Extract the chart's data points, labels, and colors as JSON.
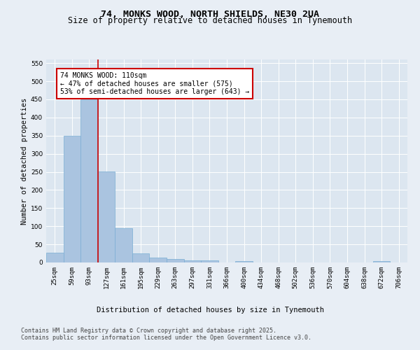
{
  "title_line1": "74, MONKS WOOD, NORTH SHIELDS, NE30 2UA",
  "title_line2": "Size of property relative to detached houses in Tynemouth",
  "xlabel": "Distribution of detached houses by size in Tynemouth",
  "ylabel": "Number of detached properties",
  "categories": [
    "25sqm",
    "59sqm",
    "93sqm",
    "127sqm",
    "161sqm",
    "195sqm",
    "229sqm",
    "263sqm",
    "297sqm",
    "331sqm",
    "366sqm",
    "400sqm",
    "434sqm",
    "468sqm",
    "502sqm",
    "536sqm",
    "570sqm",
    "604sqm",
    "638sqm",
    "672sqm",
    "706sqm"
  ],
  "values": [
    28,
    350,
    450,
    252,
    95,
    25,
    13,
    10,
    5,
    5,
    0,
    3,
    0,
    0,
    0,
    0,
    0,
    0,
    0,
    3,
    0
  ],
  "bar_color": "#aac4e0",
  "bar_edge_color": "#7aaed4",
  "vline_x_index": 2.5,
  "vline_color": "#cc0000",
  "annotation_text": "74 MONKS WOOD: 110sqm\n← 47% of detached houses are smaller (575)\n53% of semi-detached houses are larger (643) →",
  "annotation_box_color": "#ffffff",
  "annotation_box_edge_color": "#cc0000",
  "ylim": [
    0,
    560
  ],
  "yticks": [
    0,
    50,
    100,
    150,
    200,
    250,
    300,
    350,
    400,
    450,
    500,
    550
  ],
  "bg_color": "#e8eef5",
  "plot_bg_color": "#dce6f0",
  "footer_line1": "Contains HM Land Registry data © Crown copyright and database right 2025.",
  "footer_line2": "Contains public sector information licensed under the Open Government Licence v3.0.",
  "title_fontsize": 9.5,
  "subtitle_fontsize": 8.5,
  "axis_label_fontsize": 7.5,
  "tick_fontsize": 6.5,
  "annotation_fontsize": 7,
  "footer_fontsize": 6
}
